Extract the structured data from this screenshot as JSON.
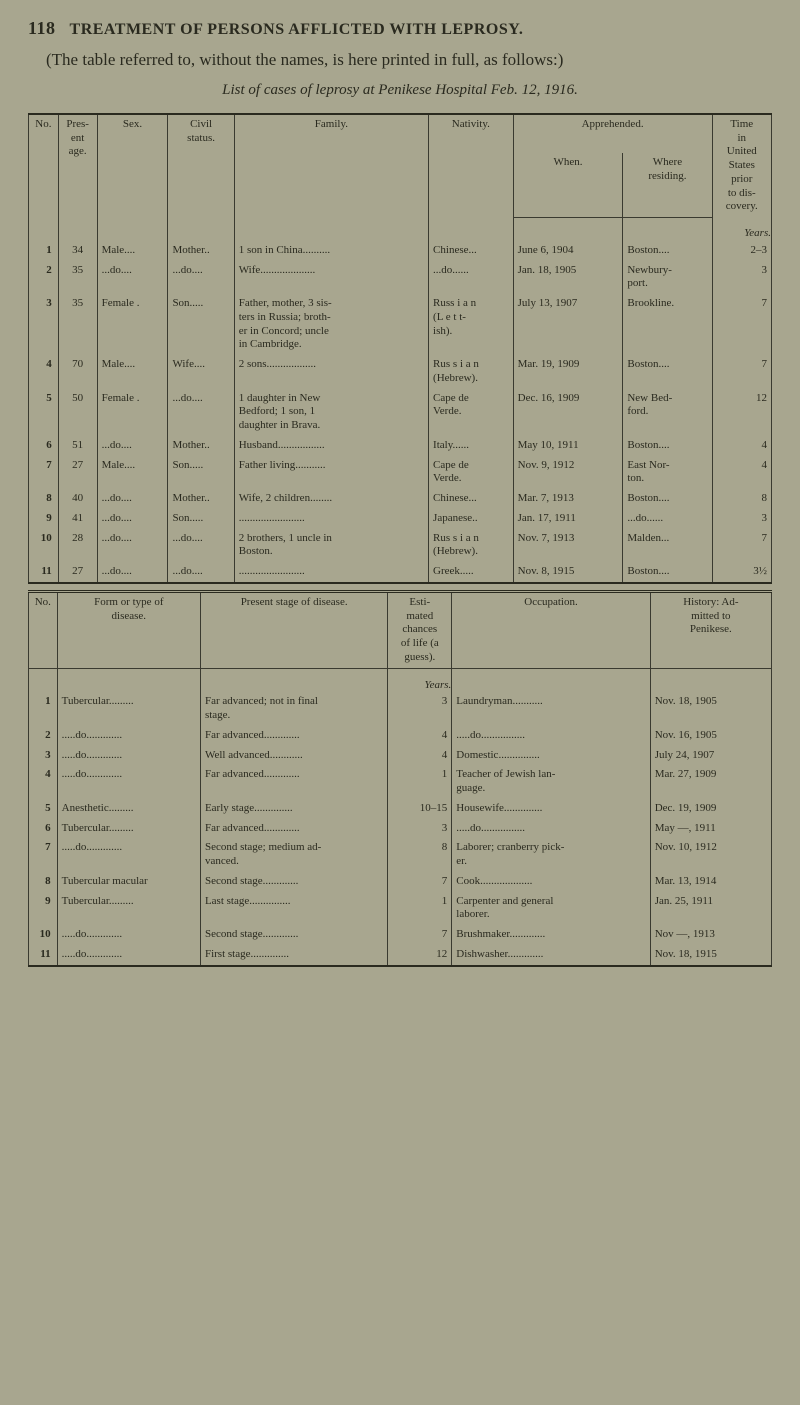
{
  "page_number": "118",
  "running_title": "TREATMENT OF PERSONS AFFLICTED WITH LEPROSY.",
  "intro": "(The table referred to, without the names, is here printed in full, as follows:)",
  "caption": "List of cases of leprosy at Penikese Hospital Feb. 12, 1916.",
  "table1": {
    "headers": {
      "no": "No.",
      "age": "Pres-\nent\nage.",
      "sex": "Sex.",
      "civil": "Civil\nstatus.",
      "family": "Family.",
      "nativity": "Nativity.",
      "apprehended": "Apprehended.",
      "when": "When.",
      "where": "Where\nresiding.",
      "time": "Time\nin\nUnited\nStates\nprior\nto dis-\ncovery."
    },
    "years_label": "Years.",
    "rows": [
      {
        "no": "1",
        "age": "34",
        "sex": "Male....",
        "civ": "Mother..",
        "fam": "1 son in China..........",
        "nat": "Chinese...",
        "when": "June  6, 1904",
        "where": "Boston....",
        "time": "2–3"
      },
      {
        "no": "2",
        "age": "35",
        "sex": "...do....",
        "civ": "...do....",
        "fam": "Wife....................",
        "nat": "...do......",
        "when": "Jan.  18, 1905",
        "where": "Newbury-\nport.",
        "time": "3"
      },
      {
        "no": "3",
        "age": "35",
        "sex": "Female .",
        "civ": "Son.....",
        "fam": "Father, mother, 3 sis-\nters in Russia; broth-\ner in Concord; uncle\nin Cambridge.",
        "nat": "Russ i a n\n(L e t t-\nish).",
        "when": "July  13, 1907",
        "where": "Brookline.",
        "time": "7"
      },
      {
        "no": "4",
        "age": "70",
        "sex": "Male....",
        "civ": "Wife....",
        "fam": "2 sons..................",
        "nat": "Rus s i a n\n(Hebrew).",
        "when": "Mar. 19, 1909",
        "where": "Boston....",
        "time": "7"
      },
      {
        "no": "5",
        "age": "50",
        "sex": "Female .",
        "civ": "...do....",
        "fam": "1 daughter in New\nBedford; 1 son, 1\ndaughter in Brava.",
        "nat": "Cape  de\nVerde.",
        "when": "Dec. 16, 1909",
        "where": "New Bed-\nford.",
        "time": "12"
      },
      {
        "no": "6",
        "age": "51",
        "sex": "...do....",
        "civ": "Mother..",
        "fam": "Husband.................",
        "nat": "Italy......",
        "when": "May 10, 1911",
        "where": "Boston....",
        "time": "4"
      },
      {
        "no": "7",
        "age": "27",
        "sex": "Male....",
        "civ": "Son.....",
        "fam": "Father living...........",
        "nat": "Cape  de\nVerde.",
        "when": "Nov.  9, 1912",
        "where": "East Nor-\nton.",
        "time": "4"
      },
      {
        "no": "8",
        "age": "40",
        "sex": "...do....",
        "civ": "Mother..",
        "fam": "Wife, 2 children........",
        "nat": "Chinese...",
        "when": "Mar.  7, 1913",
        "where": "Boston....",
        "time": "8"
      },
      {
        "no": "9",
        "age": "41",
        "sex": "...do....",
        "civ": "Son.....",
        "fam": "........................",
        "nat": "Japanese..",
        "when": "Jan. 17, 1911",
        "where": "...do......",
        "time": "3"
      },
      {
        "no": "10",
        "age": "28",
        "sex": "...do....",
        "civ": "...do....",
        "fam": "2 brothers, 1 uncle in\nBoston.",
        "nat": "Rus s i a n\n(Hebrew).",
        "when": "Nov.  7, 1913",
        "where": "Malden...",
        "time": "7"
      },
      {
        "no": "11",
        "age": "27",
        "sex": "...do....",
        "civ": "...do....",
        "fam": "........................",
        "nat": "Greek.....",
        "when": "Nov.  8, 1915",
        "where": "Boston....",
        "time": "3½"
      }
    ]
  },
  "table2": {
    "headers": {
      "no": "No.",
      "form": "Form or type of\ndisease.",
      "stage": "Present stage of disease.",
      "est": "Esti-\nmated\nchances\nof life (a\nguess).",
      "occ": "Occupation.",
      "hist": "History: Ad-\nmitted to\nPenikese."
    },
    "years_label": "Years.",
    "rows": [
      {
        "no": "1",
        "form": "Tubercular.........",
        "stage": "Far advanced; not in final\nstage.",
        "est": "3",
        "occ": "Laundryman...........",
        "hist": "Nov. 18, 1905"
      },
      {
        "no": "2",
        "form": ".....do.............",
        "stage": "Far advanced.............",
        "est": "4",
        "occ": ".....do................",
        "hist": "Nov. 16, 1905"
      },
      {
        "no": "3",
        "form": ".....do.............",
        "stage": "Well advanced............",
        "est": "4",
        "occ": "Domestic...............",
        "hist": "July 24, 1907"
      },
      {
        "no": "4",
        "form": ".....do.............",
        "stage": "Far advanced.............",
        "est": "1",
        "occ": "Teacher of Jewish lan-\nguage.",
        "hist": "Mar. 27, 1909"
      },
      {
        "no": "5",
        "form": "Anesthetic.........",
        "stage": "Early stage..............",
        "est": "10–15",
        "occ": "Housewife..............",
        "hist": "Dec. 19, 1909"
      },
      {
        "no": "6",
        "form": "Tubercular.........",
        "stage": "Far advanced.............",
        "est": "3",
        "occ": ".....do................",
        "hist": "May  —, 1911"
      },
      {
        "no": "7",
        "form": ".....do.............",
        "stage": "Second stage; medium ad-\nvanced.",
        "est": "8",
        "occ": "Laborer; cranberry pick-\ner.",
        "hist": "Nov. 10, 1912"
      },
      {
        "no": "8",
        "form": "Tubercular macular",
        "stage": "Second stage.............",
        "est": "7",
        "occ": "Cook...................",
        "hist": "Mar. 13, 1914"
      },
      {
        "no": "9",
        "form": "Tubercular.........",
        "stage": "Last stage...............",
        "est": "1",
        "occ": "Carpenter and general\nlaborer.",
        "hist": "Jan. 25, 1911"
      },
      {
        "no": "10",
        "form": ".....do.............",
        "stage": "Second stage.............",
        "est": "7",
        "occ": "Brushmaker.............",
        "hist": "Nov  —, 1913"
      },
      {
        "no": "11",
        "form": ".....do.............",
        "stage": "First stage..............",
        "est": "12",
        "occ": "Dishwasher.............",
        "hist": "Nov. 18, 1915"
      }
    ]
  }
}
